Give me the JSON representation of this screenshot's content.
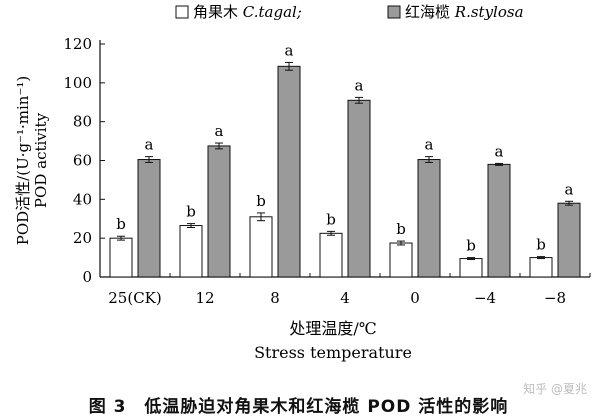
{
  "chart_data": {
    "type": "bar",
    "legend": [
      {
        "label_cn": "角果木",
        "label_latin": "C.tagal",
        "sep": ";",
        "color": "#ffffff"
      },
      {
        "label_cn": "红海榄",
        "label_latin": "R.stylosa",
        "sep": "",
        "color": "#9a9a9a"
      }
    ],
    "categories": [
      "25(CK)",
      "12",
      "8",
      "4",
      "0",
      "−4",
      "−8"
    ],
    "series": [
      {
        "name": "角果木 C.tagal",
        "color": "#ffffff",
        "values": [
          20,
          26.5,
          31,
          22.5,
          17.5,
          9.5,
          10
        ],
        "errors": [
          1,
          1,
          2,
          1,
          1,
          0.5,
          0.5
        ],
        "labels": [
          "b",
          "b",
          "b",
          "b",
          "b",
          "b",
          "b"
        ]
      },
      {
        "name": "红海榄 R.stylosa",
        "color": "#9a9a9a",
        "values": [
          60.5,
          67.5,
          108.5,
          91,
          60.5,
          58,
          38
        ],
        "errors": [
          1.5,
          1.5,
          2,
          1.5,
          1.5,
          0.5,
          1
        ],
        "labels": [
          "a",
          "a",
          "a",
          "a",
          "a",
          "a",
          "a"
        ]
      }
    ],
    "ylabel_cn": "POD活性/(U·g⁻¹·min⁻¹)",
    "ylabel_en": "POD activity",
    "xlabel_cn": "处理温度/℃",
    "xlabel_en": "Stress temperature",
    "yticks": [
      0,
      20,
      40,
      60,
      80,
      100,
      120
    ],
    "ylim": [
      0,
      120
    ],
    "grid": false
  },
  "caption": "图 3　低温胁迫对角果木和红海榄 POD 活性的影响",
  "watermark": "知乎 @夏兆"
}
